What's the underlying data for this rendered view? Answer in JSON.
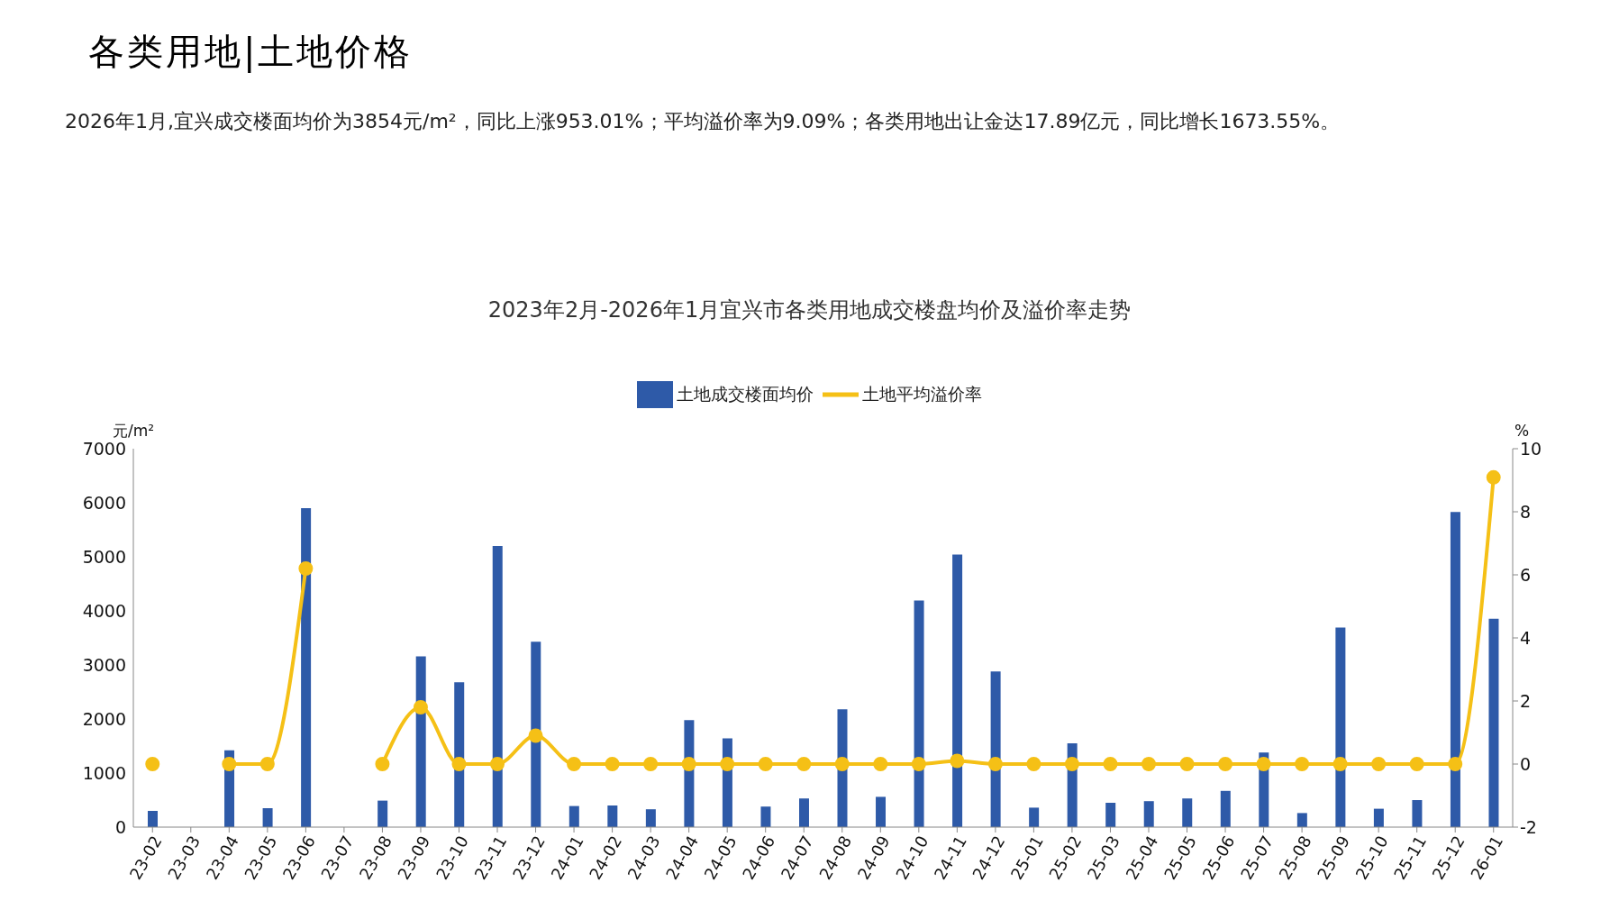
{
  "chart_data": {
    "type": "bar",
    "title": "2023年2月-2026年1月宜兴市各类用地成交楼盘均价及溢价率走势",
    "subtitle": "各类用地|土地价格",
    "annotations": [
      "2026年1月,宜兴成交楼面均价为3854元/m²，同比上涨953.01%；平均溢价率为9.09%；各类用地出让金达17.89亿元，同比增长1673.55%。"
    ],
    "ylabel": "元/m²",
    "y2label": "%",
    "categories": [
      "23-02",
      "23-03",
      "23-04",
      "23-05",
      "23-06",
      "23-07",
      "23-08",
      "23-09",
      "23-10",
      "23-11",
      "23-12",
      "24-01",
      "24-02",
      "24-03",
      "24-04",
      "24-05",
      "24-06",
      "24-07",
      "24-08",
      "24-09",
      "24-10",
      "24-11",
      "24-12",
      "25-01",
      "25-02",
      "25-03",
      "25-04",
      "25-05",
      "25-06",
      "25-07",
      "25-08",
      "25-09",
      "25-10",
      "25-11",
      "25-12",
      "26-01"
    ],
    "series": [
      {
        "name": "土地成交楼面均价",
        "color": "#2e5aa8",
        "values": [
          300,
          null,
          1420,
          350,
          5900,
          null,
          490,
          3160,
          2680,
          5200,
          3430,
          390,
          400,
          330,
          1980,
          1640,
          380,
          530,
          2180,
          560,
          4190,
          5040,
          2880,
          360,
          1550,
          450,
          480,
          530,
          670,
          1380,
          260,
          3690,
          340,
          500,
          5830,
          3854
        ]
      },
      {
        "name": "土地平均溢价率",
        "type": "line",
        "axis": "y2",
        "color": "#f5c016",
        "marker": "circle",
        "line_style": "solid",
        "values": [
          0,
          null,
          0,
          0,
          6.2,
          null,
          0,
          1.8,
          0,
          0,
          0.9,
          0,
          0,
          0,
          0,
          0,
          0,
          0,
          0,
          0,
          0,
          0.1,
          0,
          0,
          0,
          0,
          0,
          0,
          0,
          0,
          0,
          0,
          0,
          0,
          0,
          9.09
        ]
      }
    ],
    "ylim": [
      0,
      7000
    ],
    "yticks": [
      0,
      1000,
      2000,
      3000,
      4000,
      5000,
      6000,
      7000
    ],
    "y2lim": [
      -2,
      10
    ],
    "y2ticks": [
      -2,
      0,
      2,
      4,
      6,
      8,
      10
    ],
    "grid": false,
    "legend": "top"
  }
}
